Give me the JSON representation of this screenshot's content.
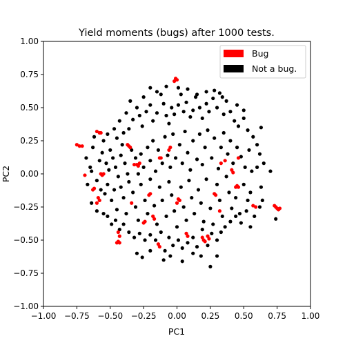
{
  "chart_data": {
    "type": "scatter",
    "title": "Yield moments (bugs) after 1000 tests.",
    "xlabel": "PC1",
    "ylabel": "PC2",
    "xlim": [
      -1.0,
      1.0
    ],
    "ylim": [
      -1.0,
      1.0
    ],
    "xticks": [
      "−1.00",
      "−0.75",
      "−0.50",
      "−0.25",
      "0.00",
      "0.25",
      "0.50",
      "0.75",
      "1.00"
    ],
    "yticks": [
      "−1.00",
      "−0.75",
      "−0.50",
      "−0.25",
      "0.00",
      "0.25",
      "0.50",
      "0.75",
      "1.00"
    ],
    "legend_position": "top-right",
    "grid": false,
    "series": [
      {
        "name": "Bug",
        "color": "#ff0000",
        "points": [
          [
            -0.75,
            0.22
          ],
          [
            -0.73,
            0.21
          ],
          [
            -0.71,
            0.21
          ],
          [
            -0.69,
            -0.01
          ],
          [
            -0.62,
            -0.11
          ],
          [
            -0.63,
            -0.12
          ],
          [
            -0.59,
            -0.18
          ],
          [
            -0.58,
            -0.2
          ],
          [
            -0.6,
            -0.22
          ],
          [
            -0.57,
            0.0
          ],
          [
            -0.56,
            -0.01
          ],
          [
            -0.55,
            0.0
          ],
          [
            -0.6,
            0.32
          ],
          [
            -0.58,
            0.31
          ],
          [
            -0.57,
            0.31
          ],
          [
            -0.37,
            0.22
          ],
          [
            -0.36,
            0.21
          ],
          [
            -0.35,
            0.2
          ],
          [
            -0.32,
            0.07
          ],
          [
            -0.3,
            0.07
          ],
          [
            -0.29,
            0.06
          ],
          [
            -0.28,
            0.08
          ],
          [
            -0.34,
            -0.22
          ],
          [
            -0.44,
            -0.44
          ],
          [
            -0.43,
            -0.47
          ],
          [
            -0.45,
            -0.52
          ],
          [
            -0.44,
            -0.51
          ],
          [
            -0.43,
            -0.52
          ],
          [
            -0.25,
            -0.37
          ],
          [
            -0.24,
            -0.36
          ],
          [
            -0.2,
            -0.15
          ],
          [
            -0.21,
            -0.16
          ],
          [
            -0.18,
            -0.32
          ],
          [
            -0.17,
            -0.34
          ],
          [
            -0.13,
            0.12
          ],
          [
            -0.12,
            0.12
          ],
          [
            -0.06,
            0.18
          ],
          [
            -0.05,
            0.2
          ],
          [
            -0.14,
            -0.53
          ],
          [
            -0.13,
            -0.55
          ],
          [
            -0.01,
            0.72
          ],
          [
            0.0,
            0.71
          ],
          [
            -0.02,
            0.7
          ],
          [
            0.0,
            -0.22
          ],
          [
            0.02,
            -0.2
          ],
          [
            0.01,
            -0.19
          ],
          [
            0.07,
            -0.45
          ],
          [
            0.08,
            -0.47
          ],
          [
            0.19,
            -0.48
          ],
          [
            0.2,
            -0.5
          ],
          [
            0.21,
            -0.51
          ],
          [
            0.23,
            -0.47
          ],
          [
            0.24,
            -0.49
          ],
          [
            0.28,
            -0.15
          ],
          [
            0.29,
            -0.16
          ],
          [
            0.32,
            -0.28
          ],
          [
            0.33,
            0.08
          ],
          [
            0.36,
            0.1
          ],
          [
            0.41,
            0.03
          ],
          [
            0.42,
            0.01
          ],
          [
            0.44,
            -0.1
          ],
          [
            0.45,
            -0.09
          ],
          [
            0.46,
            -0.1
          ],
          [
            0.46,
            0.12
          ],
          [
            0.57,
            -0.24
          ],
          [
            0.59,
            -0.25
          ],
          [
            0.73,
            -0.24
          ],
          [
            0.74,
            -0.25
          ],
          [
            0.75,
            -0.26
          ],
          [
            0.76,
            -0.27
          ],
          [
            0.77,
            -0.26
          ]
        ]
      },
      {
        "name": "Not a bug.",
        "color": "#000000",
        "points": [
          [
            -0.62,
            0.28
          ],
          [
            -0.55,
            0.25
          ],
          [
            -0.52,
            0.3
          ],
          [
            -0.5,
            0.18
          ],
          [
            -0.47,
            0.34
          ],
          [
            -0.45,
            0.27
          ],
          [
            -0.43,
            0.4
          ],
          [
            -0.41,
            0.22
          ],
          [
            -0.4,
            0.31
          ],
          [
            -0.38,
            0.46
          ],
          [
            -0.36,
            0.34
          ],
          [
            -0.33,
            0.41
          ],
          [
            -0.3,
            0.5
          ],
          [
            -0.28,
            0.44
          ],
          [
            -0.26,
            0.36
          ],
          [
            -0.23,
            0.47
          ],
          [
            -0.2,
            0.52
          ],
          [
            -0.18,
            0.4
          ],
          [
            -0.15,
            0.46
          ],
          [
            -0.12,
            0.6
          ],
          [
            -0.1,
            0.53
          ],
          [
            -0.08,
            0.44
          ],
          [
            -0.06,
            0.38
          ],
          [
            -0.04,
            0.5
          ],
          [
            -0.02,
            0.45
          ],
          [
            0.01,
            0.52
          ],
          [
            0.03,
            0.6
          ],
          [
            0.05,
            0.47
          ],
          [
            0.07,
            0.54
          ],
          [
            0.1,
            0.43
          ],
          [
            0.12,
            0.48
          ],
          [
            0.14,
            0.58
          ],
          [
            0.17,
            0.5
          ],
          [
            0.19,
            0.42
          ],
          [
            0.22,
            0.53
          ],
          [
            0.24,
            0.47
          ],
          [
            0.27,
            0.57
          ],
          [
            0.3,
            0.5
          ],
          [
            0.32,
            0.61
          ],
          [
            0.35,
            0.45
          ],
          [
            0.37,
            0.55
          ],
          [
            0.4,
            0.47
          ],
          [
            0.43,
            0.4
          ],
          [
            0.46,
            0.36
          ],
          [
            0.5,
            0.42
          ],
          [
            0.53,
            0.33
          ],
          [
            0.57,
            0.28
          ],
          [
            0.6,
            0.22
          ],
          [
            0.62,
            0.15
          ],
          [
            0.65,
            0.08
          ],
          [
            -0.58,
            0.1
          ],
          [
            -0.56,
            0.16
          ],
          [
            -0.53,
            0.08
          ],
          [
            -0.51,
            0.03
          ],
          [
            -0.48,
            0.12
          ],
          [
            -0.46,
            0.05
          ],
          [
            -0.44,
            -0.02
          ],
          [
            -0.42,
            0.14
          ],
          [
            -0.39,
            0.08
          ],
          [
            -0.37,
            0.0
          ],
          [
            -0.34,
            0.18
          ],
          [
            -0.31,
            0.12
          ],
          [
            -0.29,
            0.0
          ],
          [
            -0.27,
            0.15
          ],
          [
            -0.25,
            0.05
          ],
          [
            -0.22,
            0.2
          ],
          [
            -0.2,
            0.1
          ],
          [
            -0.18,
            0.25
          ],
          [
            -0.16,
            0.02
          ],
          [
            -0.14,
            0.18
          ],
          [
            -0.11,
            0.08
          ],
          [
            -0.09,
            0.28
          ],
          [
            -0.07,
            0.14
          ],
          [
            -0.05,
            0.05
          ],
          [
            -0.03,
            0.3
          ],
          [
            -0.01,
            0.12
          ],
          [
            0.02,
            0.22
          ],
          [
            0.04,
            0.08
          ],
          [
            0.06,
            0.32
          ],
          [
            0.08,
            0.16
          ],
          [
            0.1,
            0.03
          ],
          [
            0.12,
            0.25
          ],
          [
            0.15,
            0.11
          ],
          [
            0.17,
            0.3
          ],
          [
            0.19,
            0.07
          ],
          [
            0.21,
            0.2
          ],
          [
            0.23,
            0.33
          ],
          [
            0.26,
            0.12
          ],
          [
            0.28,
            0.27
          ],
          [
            0.31,
            0.04
          ],
          [
            0.33,
            0.2
          ],
          [
            0.35,
            0.31
          ],
          [
            0.38,
            0.15
          ],
          [
            0.4,
            0.25
          ],
          [
            0.42,
            0.08
          ],
          [
            0.45,
            0.2
          ],
          [
            0.48,
            0.13
          ],
          [
            0.51,
            0.05
          ],
          [
            0.54,
            0.18
          ],
          [
            0.56,
            0.02
          ],
          [
            -0.6,
            -0.05
          ],
          [
            -0.57,
            -0.12
          ],
          [
            -0.54,
            -0.15
          ],
          [
            -0.52,
            -0.08
          ],
          [
            -0.49,
            -0.2
          ],
          [
            -0.47,
            -0.12
          ],
          [
            -0.45,
            -0.27
          ],
          [
            -0.42,
            -0.1
          ],
          [
            -0.4,
            -0.18
          ],
          [
            -0.38,
            -0.3
          ],
          [
            -0.36,
            -0.06
          ],
          [
            -0.33,
            -0.14
          ],
          [
            -0.31,
            -0.25
          ],
          [
            -0.29,
            -0.35
          ],
          [
            -0.27,
            -0.08
          ],
          [
            -0.24,
            -0.2
          ],
          [
            -0.22,
            -0.3
          ],
          [
            -0.2,
            -0.04
          ],
          [
            -0.17,
            -0.24
          ],
          [
            -0.15,
            -0.38
          ],
          [
            -0.13,
            -0.1
          ],
          [
            -0.11,
            -0.2
          ],
          [
            -0.08,
            -0.32
          ],
          [
            -0.06,
            -0.06
          ],
          [
            -0.04,
            -0.16
          ],
          [
            -0.02,
            -0.28
          ],
          [
            0.0,
            -0.4
          ],
          [
            0.03,
            -0.1
          ],
          [
            0.05,
            -0.25
          ],
          [
            0.07,
            -0.35
          ],
          [
            0.09,
            -0.05
          ],
          [
            0.11,
            -0.18
          ],
          [
            0.13,
            -0.3
          ],
          [
            0.16,
            -0.12
          ],
          [
            0.18,
            -0.22
          ],
          [
            0.2,
            -0.36
          ],
          [
            0.22,
            -0.04
          ],
          [
            0.25,
            -0.26
          ],
          [
            0.27,
            -0.38
          ],
          [
            0.3,
            -0.08
          ],
          [
            0.32,
            -0.2
          ],
          [
            0.34,
            -0.32
          ],
          [
            0.37,
            -0.02
          ],
          [
            0.39,
            -0.14
          ],
          [
            0.41,
            -0.26
          ],
          [
            0.44,
            -0.18
          ],
          [
            0.47,
            -0.3
          ],
          [
            0.5,
            -0.08
          ],
          [
            0.53,
            -0.2
          ],
          [
            0.55,
            -0.14
          ],
          [
            -0.52,
            -0.32
          ],
          [
            -0.49,
            -0.38
          ],
          [
            -0.46,
            -0.35
          ],
          [
            -0.43,
            -0.42
          ],
          [
            -0.4,
            -0.38
          ],
          [
            -0.36,
            -0.44
          ],
          [
            -0.32,
            -0.48
          ],
          [
            -0.28,
            -0.45
          ],
          [
            -0.24,
            -0.5
          ],
          [
            -0.2,
            -0.46
          ],
          [
            -0.16,
            -0.5
          ],
          [
            -0.12,
            -0.44
          ],
          [
            -0.09,
            -0.58
          ],
          [
            -0.06,
            -0.48
          ],
          [
            -0.03,
            -0.54
          ],
          [
            0.01,
            -0.5
          ],
          [
            0.04,
            -0.56
          ],
          [
            0.08,
            -0.52
          ],
          [
            0.12,
            -0.48
          ],
          [
            0.15,
            -0.55
          ],
          [
            0.19,
            -0.42
          ],
          [
            0.23,
            -0.54
          ],
          [
            0.26,
            -0.45
          ],
          [
            0.3,
            -0.5
          ],
          [
            0.33,
            -0.44
          ],
          [
            0.36,
            -0.4
          ],
          [
            0.4,
            -0.36
          ],
          [
            0.44,
            -0.32
          ],
          [
            0.48,
            -0.37
          ],
          [
            0.52,
            -0.28
          ],
          [
            -0.3,
            -0.6
          ],
          [
            -0.26,
            -0.63
          ],
          [
            -0.1,
            -0.65
          ],
          [
            0.04,
            -0.66
          ],
          [
            0.12,
            -0.6
          ],
          [
            0.25,
            -0.7
          ],
          [
            0.3,
            -0.62
          ],
          [
            -0.2,
            -0.58
          ],
          [
            0.18,
            -0.62
          ],
          [
            -0.05,
            -0.62
          ],
          [
            -0.2,
            0.65
          ],
          [
            -0.15,
            0.62
          ],
          [
            -0.08,
            0.66
          ],
          [
            0.01,
            0.65
          ],
          [
            0.08,
            0.64
          ],
          [
            0.15,
            0.6
          ],
          [
            0.22,
            0.62
          ],
          [
            0.28,
            0.63
          ],
          [
            -0.25,
            0.58
          ],
          [
            0.34,
            0.58
          ],
          [
            -0.68,
            0.12
          ],
          [
            -0.67,
            -0.08
          ],
          [
            -0.64,
            0.02
          ],
          [
            -0.64,
            -0.22
          ],
          [
            -0.63,
            0.2
          ],
          [
            0.63,
            -0.1
          ],
          [
            0.63,
            0.35
          ],
          [
            0.6,
            0.05
          ],
          [
            0.64,
            -0.2
          ],
          [
            0.7,
            0.02
          ],
          [
            0.74,
            -0.34
          ],
          [
            0.62,
            -0.25
          ],
          [
            -0.55,
            -0.3
          ],
          [
            -0.6,
            -0.28
          ],
          [
            0.55,
            -0.4
          ],
          [
            0.58,
            -0.32
          ],
          [
            -0.65,
            0.05
          ],
          [
            -0.35,
            0.55
          ],
          [
            0.45,
            0.52
          ],
          [
            0.5,
            0.48
          ]
        ]
      }
    ]
  }
}
